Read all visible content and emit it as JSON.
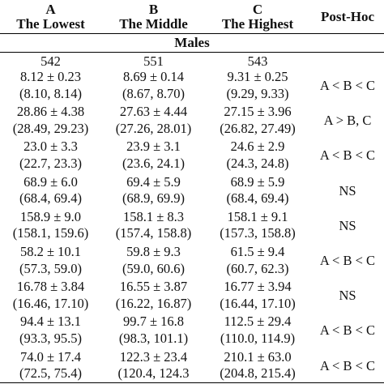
{
  "table": {
    "headers": [
      {
        "letter": "A",
        "label": "The Lowest"
      },
      {
        "letter": "B",
        "label": "The Middle"
      },
      {
        "letter": "C",
        "label": "The Highest"
      }
    ],
    "posthoc_header": "Post-Hoc",
    "section_label": "Males",
    "counts": [
      "542",
      "551",
      "543"
    ],
    "rows": [
      {
        "a": [
          "8.12 ± 0.23",
          "(8.10, 8.14)"
        ],
        "b": [
          "8.69 ± 0.14",
          "(8.67, 8.70)"
        ],
        "c": [
          "9.31 ± 0.25",
          "(9.29, 9.33)"
        ],
        "posthoc": "A < B < C"
      },
      {
        "a": [
          "28.86 ± 4.38",
          "(28.49, 29.23)"
        ],
        "b": [
          "27.63 ± 4.44",
          "(27.26, 28.01)"
        ],
        "c": [
          "27.15 ± 3.96",
          "(26.82, 27.49)"
        ],
        "posthoc": "A > B, C"
      },
      {
        "a": [
          "23.0 ± 3.3",
          "(22.7, 23.3)"
        ],
        "b": [
          "23.9 ± 3.1",
          "(23.6, 24.1)"
        ],
        "c": [
          "24.6 ± 2.9",
          "(24.3, 24.8)"
        ],
        "posthoc": "A < B < C"
      },
      {
        "a": [
          "68.9 ± 6.0",
          "(68.4, 69.4)"
        ],
        "b": [
          "69.4 ± 5.9",
          "(68.9, 69.9)"
        ],
        "c": [
          "68.9 ± 5.9",
          "(68.4, 69.4)"
        ],
        "posthoc": "NS"
      },
      {
        "a": [
          "158.9 ± 9.0",
          "(158.1, 159.6)"
        ],
        "b": [
          "158.1 ± 8.3",
          "(157.4, 158.8)"
        ],
        "c": [
          "158.1 ± 9.1",
          "(157.3, 158.8)"
        ],
        "posthoc": "NS"
      },
      {
        "a": [
          "58.2 ± 10.1",
          "(57.3, 59.0)"
        ],
        "b": [
          "59.8 ± 9.3",
          "(59.0, 60.6)"
        ],
        "c": [
          "61.5 ± 9.4",
          "(60.7, 62.3)"
        ],
        "posthoc": "A < B < C"
      },
      {
        "a": [
          "16.78 ± 3.84",
          "(16.46, 17.10)"
        ],
        "b": [
          "16.55 ± 3.87",
          "(16.22, 16.87)"
        ],
        "c": [
          "16.77 ± 3.94",
          "(16.44, 17.10)"
        ],
        "posthoc": "NS"
      },
      {
        "a": [
          "94.4 ± 13.1",
          "(93.3, 95.5)"
        ],
        "b": [
          "99.7 ± 16.8",
          "(98.3, 101.1)"
        ],
        "c": [
          "112.5 ± 29.4",
          "(110.0, 114.9)"
        ],
        "posthoc": "A < B < C"
      },
      {
        "a": [
          "74.0 ± 17.4",
          "(72.5, 75.4)"
        ],
        "b": [
          "122.3 ± 23.4",
          "(120.4, 124.3"
        ],
        "c": [
          "210.1 ± 63.0",
          "(204.8, 215.4)"
        ],
        "posthoc": "A < B < C"
      }
    ]
  }
}
